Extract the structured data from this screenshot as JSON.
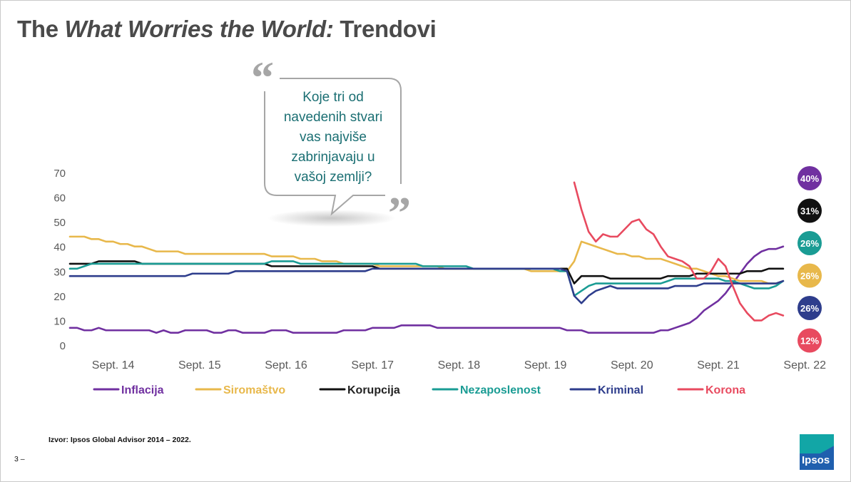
{
  "header": {
    "title_pre": "The ",
    "title_italic": "What Worries the World:",
    "title_post": " Trendovi"
  },
  "bubble": {
    "question_lines": [
      "Koje tri od",
      "navedenih stvari",
      "vas najviše",
      "zabrinjavaju u",
      "vašoj zemlji?"
    ]
  },
  "footer": {
    "source": "Izvor: Ipsos Global Advisor 2014 – 2022.",
    "page_number": "3 –",
    "logo_text": "Ipsos"
  },
  "colors": {
    "inflacija": "#7030a0",
    "siromastvo": "#e8b84b",
    "korupcija": "#111111",
    "nezaposlenost": "#1a9c94",
    "kriminal": "#2e3d8c",
    "korona": "#e84a5f",
    "axis_text": "#595959",
    "quote_mark": "#a6a6a6",
    "bubble_text": "#1b6f73"
  },
  "chart_data": {
    "type": "line",
    "title": "",
    "xlabel": "",
    "ylabel": "",
    "ylim": [
      0,
      70
    ],
    "yticks": [
      0,
      10,
      20,
      30,
      40,
      50,
      60,
      70
    ],
    "xlim": [
      0,
      100
    ],
    "xticks": [
      {
        "label": "Sept. 14",
        "x": 6
      },
      {
        "label": "Sept. 15",
        "x": 18
      },
      {
        "label": "Sept. 16",
        "x": 30
      },
      {
        "label": "Sept. 17",
        "x": 42
      },
      {
        "label": "Sept. 18",
        "x": 54
      },
      {
        "label": "Sept. 19",
        "x": 66
      },
      {
        "label": "Sept. 20",
        "x": 78
      },
      {
        "label": "Sept. 21",
        "x": 90
      },
      {
        "label": "Sept. 22",
        "x": 102
      }
    ],
    "legend_position": "bottom",
    "series": [
      {
        "key": "inflacija",
        "name": "Inflacija",
        "end_label": "40%",
        "start": 0,
        "values": [
          7,
          7,
          6,
          6,
          7,
          6,
          6,
          6,
          6,
          6,
          6,
          6,
          5,
          6,
          5,
          5,
          6,
          6,
          6,
          6,
          5,
          5,
          6,
          6,
          5,
          5,
          5,
          5,
          6,
          6,
          6,
          5,
          5,
          5,
          5,
          5,
          5,
          5,
          6,
          6,
          6,
          6,
          7,
          7,
          7,
          7,
          8,
          8,
          8,
          8,
          8,
          7,
          7,
          7,
          7,
          7,
          7,
          7,
          7,
          7,
          7,
          7,
          7,
          7,
          7,
          7,
          7,
          7,
          7,
          6,
          6,
          6,
          5,
          5,
          5,
          5,
          5,
          5,
          5,
          5,
          5,
          5,
          6,
          6,
          7,
          8,
          9,
          11,
          14,
          16,
          18,
          21,
          25,
          29,
          33,
          36,
          38,
          39,
          39,
          40
        ]
      },
      {
        "key": "siromastvo",
        "name": "Siromaštvo",
        "end_label": "26%",
        "start": 0,
        "values": [
          44,
          44,
          44,
          43,
          43,
          42,
          42,
          41,
          41,
          40,
          40,
          39,
          38,
          38,
          38,
          38,
          37,
          37,
          37,
          37,
          37,
          37,
          37,
          37,
          37,
          37,
          37,
          37,
          36,
          36,
          36,
          36,
          35,
          35,
          35,
          34,
          34,
          34,
          33,
          33,
          33,
          33,
          33,
          32,
          32,
          32,
          32,
          32,
          32,
          32,
          32,
          32,
          31,
          31,
          31,
          31,
          31,
          31,
          31,
          31,
          31,
          31,
          31,
          31,
          30,
          30,
          30,
          30,
          30,
          30,
          34,
          42,
          41,
          40,
          39,
          38,
          37,
          37,
          36,
          36,
          35,
          35,
          35,
          34,
          33,
          32,
          31,
          31,
          30,
          29,
          28,
          28,
          27,
          26,
          26,
          26,
          26,
          25,
          25,
          26
        ]
      },
      {
        "key": "korupcija",
        "name": "Korupcija",
        "end_label": "31%",
        "start": 0,
        "values": [
          33,
          33,
          33,
          33,
          34,
          34,
          34,
          34,
          34,
          34,
          33,
          33,
          33,
          33,
          33,
          33,
          33,
          33,
          33,
          33,
          33,
          33,
          33,
          33,
          33,
          33,
          33,
          33,
          32,
          32,
          32,
          32,
          32,
          32,
          32,
          32,
          32,
          32,
          32,
          32,
          32,
          32,
          32,
          31,
          31,
          31,
          31,
          31,
          31,
          31,
          31,
          31,
          31,
          31,
          31,
          31,
          31,
          31,
          31,
          31,
          31,
          31,
          31,
          31,
          31,
          31,
          31,
          31,
          31,
          31,
          25,
          28,
          28,
          28,
          28,
          27,
          27,
          27,
          27,
          27,
          27,
          27,
          27,
          28,
          28,
          28,
          28,
          29,
          29,
          29,
          29,
          29,
          29,
          29,
          30,
          30,
          30,
          31,
          31,
          31
        ]
      },
      {
        "key": "nezaposlenost",
        "name": "Nezaposlenost",
        "end_label": "26%",
        "start": 0,
        "values": [
          31,
          31,
          32,
          33,
          33,
          33,
          33,
          33,
          33,
          33,
          33,
          33,
          33,
          33,
          33,
          33,
          33,
          33,
          33,
          33,
          33,
          33,
          33,
          33,
          33,
          33,
          33,
          33,
          34,
          34,
          34,
          34,
          33,
          33,
          33,
          33,
          33,
          33,
          33,
          33,
          33,
          33,
          33,
          33,
          33,
          33,
          33,
          33,
          33,
          32,
          32,
          32,
          32,
          32,
          32,
          32,
          31,
          31,
          31,
          31,
          31,
          31,
          31,
          31,
          31,
          31,
          31,
          31,
          30,
          30,
          20,
          22,
          24,
          25,
          25,
          25,
          25,
          25,
          25,
          25,
          25,
          25,
          25,
          26,
          27,
          27,
          27,
          27,
          27,
          27,
          27,
          26,
          26,
          25,
          24,
          23,
          23,
          23,
          24,
          26
        ]
      },
      {
        "key": "kriminal",
        "name": "Kriminal",
        "end_label": "26%",
        "start": 0,
        "values": [
          28,
          28,
          28,
          28,
          28,
          28,
          28,
          28,
          28,
          28,
          28,
          28,
          28,
          28,
          28,
          28,
          28,
          29,
          29,
          29,
          29,
          29,
          29,
          30,
          30,
          30,
          30,
          30,
          30,
          30,
          30,
          30,
          30,
          30,
          30,
          30,
          30,
          30,
          30,
          30,
          30,
          30,
          31,
          31,
          31,
          31,
          31,
          31,
          31,
          31,
          31,
          31,
          31,
          31,
          31,
          31,
          31,
          31,
          31,
          31,
          31,
          31,
          31,
          31,
          31,
          31,
          31,
          31,
          31,
          30,
          20,
          17,
          20,
          22,
          23,
          24,
          23,
          23,
          23,
          23,
          23,
          23,
          23,
          23,
          24,
          24,
          24,
          24,
          25,
          25,
          25,
          25,
          25,
          25,
          25,
          25,
          25,
          25,
          25,
          26
        ]
      },
      {
        "key": "korona",
        "name": "Korona",
        "end_label": "12%",
        "start": 70,
        "values": [
          66,
          55,
          46,
          42,
          45,
          44,
          44,
          47,
          50,
          51,
          47,
          45,
          40,
          36,
          35,
          34,
          32,
          27,
          27,
          30,
          35,
          32,
          24,
          17,
          13,
          10,
          10,
          12,
          13,
          12
        ]
      }
    ]
  }
}
